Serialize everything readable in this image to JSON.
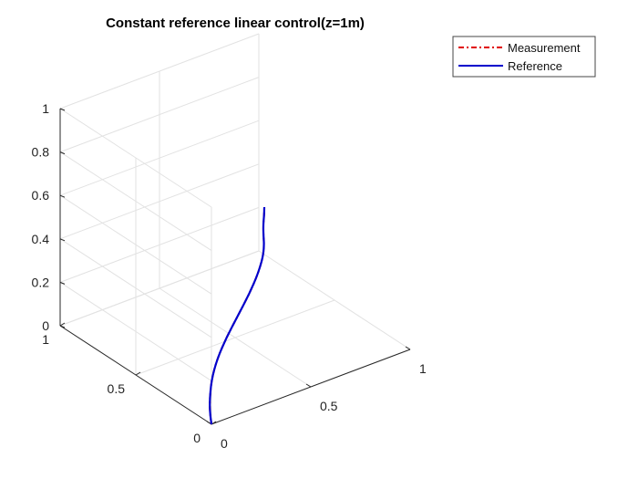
{
  "chart_data": {
    "type": "line",
    "projection": "3d",
    "title": "Constant reference linear control(z=1m)",
    "xlabel": "",
    "ylabel": "",
    "zlabel": "",
    "xlim": [
      0,
      1
    ],
    "ylim": [
      0,
      1
    ],
    "zlim": [
      0,
      1
    ],
    "x_ticks": [
      "0",
      "0.5",
      "1"
    ],
    "y_ticks": [
      "0",
      "0.5",
      "1"
    ],
    "z_ticks": [
      "0",
      "0.2",
      "0.4",
      "0.6",
      "0.8",
      "1"
    ],
    "grid": true,
    "legend_position": "top-right",
    "series": [
      {
        "name": "Measurement",
        "style": "dash-dot",
        "color": "#e00000",
        "x": [
          0,
          0,
          0,
          0,
          0,
          0,
          0,
          0,
          0,
          0,
          0,
          0,
          0
        ],
        "y": [
          0,
          0,
          0,
          0,
          0,
          0,
          0,
          0,
          0,
          0,
          0,
          0,
          0
        ],
        "z": [
          0,
          0.04,
          0.1,
          0.2,
          0.3,
          0.4,
          0.5,
          0.6,
          0.7,
          0.8,
          0.9,
          0.97,
          1.0
        ]
      },
      {
        "name": "Reference",
        "style": "solid",
        "color": "#0000cc",
        "x": [
          0,
          0,
          0,
          0,
          0,
          0,
          0,
          0,
          0,
          0,
          0,
          0,
          0
        ],
        "y": [
          0,
          0,
          0,
          0,
          0,
          0,
          0,
          0,
          0,
          0,
          0,
          0,
          0
        ],
        "z": [
          0,
          0.04,
          0.1,
          0.2,
          0.3,
          0.4,
          0.5,
          0.6,
          0.7,
          0.8,
          0.9,
          0.97,
          1.0
        ]
      }
    ]
  }
}
